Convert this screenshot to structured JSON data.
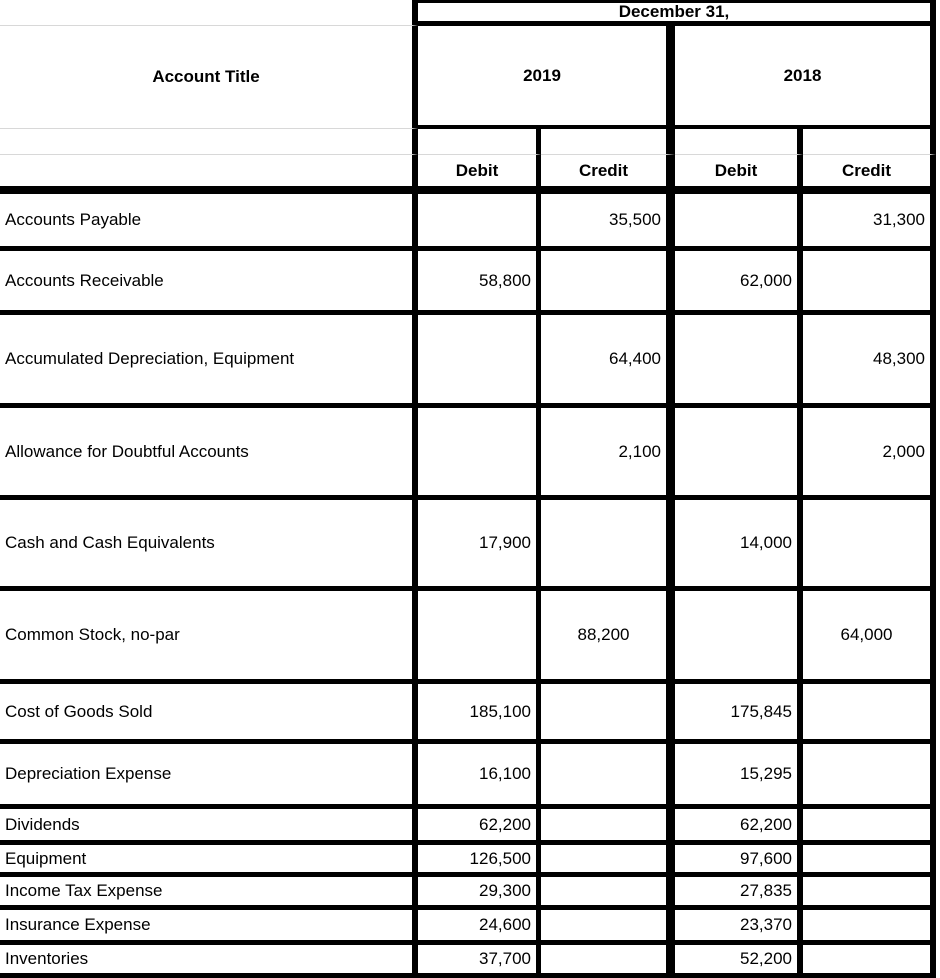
{
  "header": {
    "date_label": "December 31,",
    "account_title_label": "Account Title",
    "years": [
      "2019",
      "2018"
    ],
    "columns": [
      "Debit",
      "Credit",
      "Debit",
      "Credit"
    ]
  },
  "colors": {
    "border": "#000000",
    "gridline": "#d8d8d8",
    "background": "#ffffff",
    "text": "#000000"
  },
  "rows": [
    {
      "title": "Accounts Payable",
      "debit_2019": "",
      "credit_2019": "35,500",
      "debit_2018": "",
      "credit_2018": "31,300"
    },
    {
      "title": "Accounts Receivable",
      "debit_2019": "58,800",
      "credit_2019": "",
      "debit_2018": "62,000",
      "credit_2018": ""
    },
    {
      "title": "Accumulated Depreciation, Equipment",
      "debit_2019": "",
      "credit_2019": "64,400",
      "debit_2018": "",
      "credit_2018": "48,300"
    },
    {
      "title": "Allowance for Doubtful Accounts",
      "debit_2019": "",
      "credit_2019": "2,100",
      "debit_2018": "",
      "credit_2018": "2,000"
    },
    {
      "title": "Cash and Cash Equivalents",
      "debit_2019": "17,900",
      "credit_2019": "",
      "debit_2018": "14,000",
      "credit_2018": ""
    },
    {
      "title": "Common Stock, no-par",
      "debit_2019": "",
      "credit_2019": "88,200",
      "debit_2018": "",
      "credit_2018": "64,000"
    },
    {
      "title": "Cost of Goods Sold",
      "debit_2019": "185,100",
      "credit_2019": "",
      "debit_2018": "175,845",
      "credit_2018": ""
    },
    {
      "title": "Depreciation Expense",
      "debit_2019": "16,100",
      "credit_2019": "",
      "debit_2018": "15,295",
      "credit_2018": ""
    },
    {
      "title": "Dividends",
      "debit_2019": "62,200",
      "credit_2019": "",
      "debit_2018": "62,200",
      "credit_2018": ""
    },
    {
      "title": "Equipment",
      "debit_2019": "126,500",
      "credit_2019": "",
      "debit_2018": "97,600",
      "credit_2018": ""
    },
    {
      "title": "Income Tax Expense",
      "debit_2019": "29,300",
      "credit_2019": "",
      "debit_2018": "27,835",
      "credit_2018": ""
    },
    {
      "title": "Insurance Expense",
      "debit_2019": "24,600",
      "credit_2019": "",
      "debit_2018": "23,370",
      "credit_2018": ""
    },
    {
      "title": "Inventories",
      "debit_2019": "37,700",
      "credit_2019": "",
      "debit_2018": "52,200",
      "credit_2018": ""
    }
  ]
}
